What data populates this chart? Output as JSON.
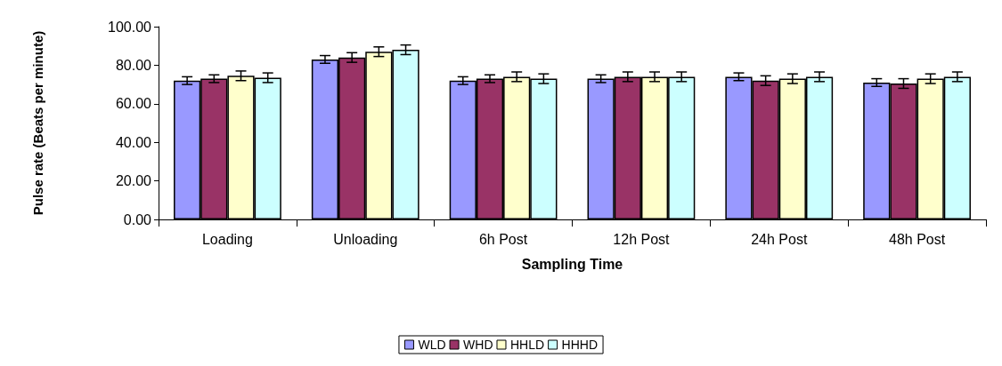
{
  "chart_data": {
    "type": "bar",
    "xlabel": "Sampling Time",
    "ylabel": "Pulse rate (Beats per minute)",
    "categories": [
      "Loading",
      "Unloading",
      "6h Post",
      "12h Post",
      "24h Post",
      "48h Post"
    ],
    "series": [
      {
        "name": "WLD",
        "color": "#9999ff",
        "values": [
          72,
          83,
          72,
          73,
          74,
          71
        ],
        "errors": [
          2,
          2,
          2,
          2,
          2,
          2
        ]
      },
      {
        "name": "WHD",
        "color": "#993366",
        "values": [
          73,
          84,
          73,
          74,
          72,
          70.5
        ],
        "errors": [
          2,
          2.5,
          2,
          2.5,
          2.5,
          2.5
        ]
      },
      {
        "name": "HHLD",
        "color": "#ffffcc",
        "values": [
          74.5,
          87,
          74,
          74,
          73,
          73
        ],
        "errors": [
          2.5,
          2.5,
          2.5,
          2.5,
          2.5,
          2.5
        ]
      },
      {
        "name": "HHHD",
        "color": "#ccffff",
        "values": [
          73.5,
          88,
          73,
          74,
          74,
          74
        ],
        "errors": [
          2.5,
          2.5,
          2.5,
          2.5,
          2.5,
          2.5
        ]
      }
    ],
    "ylim": [
      0,
      100
    ],
    "yticks": [
      {
        "value": 0,
        "label": "0.00"
      },
      {
        "value": 20,
        "label": "20.00"
      },
      {
        "value": 40,
        "label": "40.00"
      },
      {
        "value": 60,
        "label": "60.00"
      },
      {
        "value": 80,
        "label": "80.00"
      },
      {
        "value": 100,
        "label": "100.00"
      }
    ],
    "grid": false,
    "legend": "bottom"
  }
}
